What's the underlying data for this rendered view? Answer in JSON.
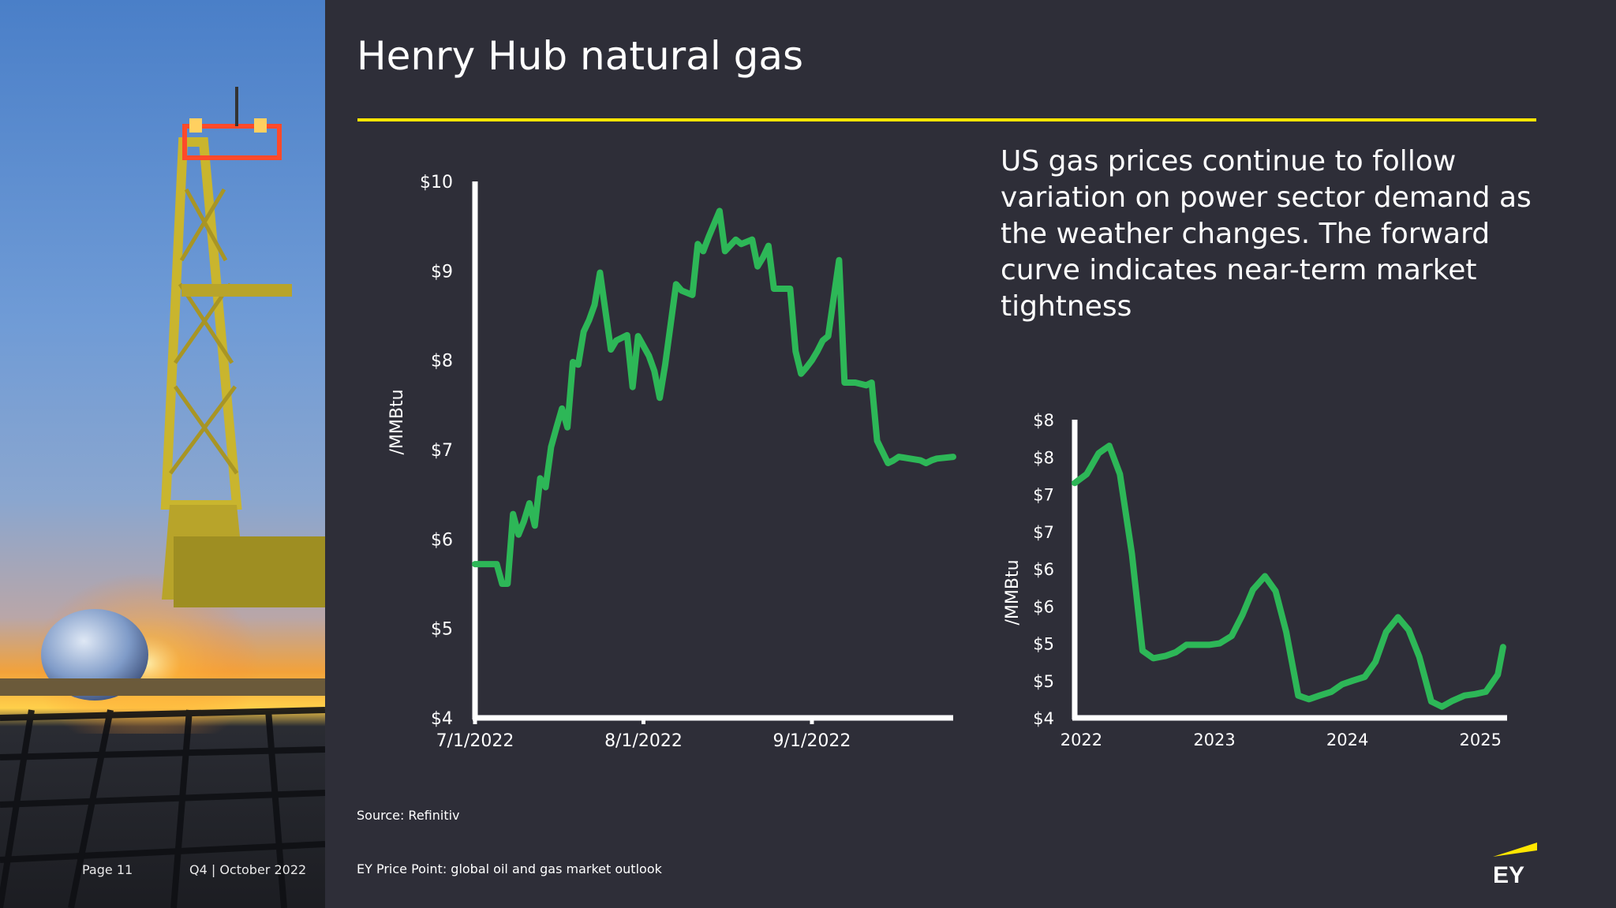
{
  "slide": {
    "title": "Henry Hub natural gas",
    "commentary": "US gas prices continue to follow variation on power sector demand as the weather changes.  The forward curve indicates near-term market tightness",
    "source": "Source: Refinitiv",
    "footer_title": "EY Price Point: global oil and gas market outlook",
    "page": "Page 11",
    "quarter": "Q4 | October 2022",
    "logo_text": "EY"
  },
  "colors": {
    "background": "#2e2e38",
    "accent": "#ffe600",
    "series": "#2db757",
    "axis": "#ffffff"
  },
  "chart_data": [
    {
      "type": "line",
      "title": "",
      "ylabel": "/MMBtu",
      "xlabel": "",
      "x_ticks": [
        "7/1/2022",
        "8/1/2022",
        "9/1/2022"
      ],
      "x_tick_days": [
        0,
        31,
        62
      ],
      "x_range_days": [
        0,
        88
      ],
      "y_ticks": [
        "$4",
        "$5",
        "$6",
        "$7",
        "$8",
        "$9",
        "$10"
      ],
      "ylim": [
        4,
        10
      ],
      "grid": false,
      "series": [
        {
          "name": "",
          "x_days": [
            0,
            4,
            5,
            6,
            7,
            8,
            9,
            10,
            11,
            12,
            13,
            14,
            15,
            16,
            17,
            18,
            19,
            20,
            21,
            22,
            23,
            25,
            26,
            27,
            28,
            29,
            30,
            32,
            33,
            34,
            35,
            37,
            38,
            40,
            41,
            42,
            43,
            45,
            46,
            48,
            49,
            51,
            52,
            53,
            54,
            55,
            56,
            58,
            59,
            60,
            61,
            62,
            63,
            64,
            65,
            67,
            68,
            70,
            72,
            73,
            74,
            76,
            77,
            78,
            82,
            83,
            84,
            85,
            88
          ],
          "values": [
            5.72,
            5.72,
            5.5,
            5.5,
            6.28,
            6.05,
            6.2,
            6.4,
            6.15,
            6.68,
            6.58,
            7.03,
            7.25,
            7.46,
            7.25,
            7.98,
            7.95,
            8.32,
            8.45,
            8.62,
            8.98,
            8.12,
            8.22,
            8.25,
            8.28,
            7.7,
            8.27,
            8.05,
            7.88,
            7.58,
            7.95,
            8.85,
            8.78,
            8.73,
            9.3,
            9.22,
            9.38,
            9.67,
            9.22,
            9.35,
            9.3,
            9.35,
            9.05,
            9.15,
            9.28,
            8.8,
            8.8,
            8.8,
            8.1,
            7.85,
            7.92,
            8.0,
            8.1,
            8.22,
            8.27,
            9.12,
            7.75,
            7.75,
            7.72,
            7.75,
            7.1,
            6.85,
            6.88,
            6.92,
            6.88,
            6.85,
            6.88,
            6.9,
            6.92
          ]
        }
      ]
    },
    {
      "type": "line",
      "title": "",
      "ylabel": "/MMBtu",
      "xlabel": "",
      "x_ticks": [
        "2022",
        "2023",
        "2024",
        "2025"
      ],
      "x_tick_years": [
        2022,
        2023,
        2024,
        2025
      ],
      "x_range_years": [
        2021.95,
        2025.2
      ],
      "y_ticks": [
        "$4",
        "$5",
        "$5",
        "$6",
        "$6",
        "$7",
        "$7",
        "$8",
        "$8"
      ],
      "y_tick_values": [
        4.0,
        4.5,
        5.0,
        5.5,
        6.0,
        6.5,
        7.0,
        7.5,
        8.0
      ],
      "ylim": [
        4,
        8
      ],
      "grid": false,
      "series": [
        {
          "name": "",
          "x_years": [
            2021.95,
            2022.04,
            2022.13,
            2022.21,
            2022.29,
            2022.38,
            2022.46,
            2022.54,
            2022.63,
            2022.71,
            2022.79,
            2022.88,
            2022.96,
            2023.04,
            2023.13,
            2023.21,
            2023.29,
            2023.38,
            2023.46,
            2023.54,
            2023.63,
            2023.71,
            2023.79,
            2023.88,
            2023.96,
            2024.04,
            2024.13,
            2024.21,
            2024.29,
            2024.38,
            2024.46,
            2024.54,
            2024.63,
            2024.71,
            2024.79,
            2024.88,
            2024.96,
            2025.04,
            2025.13,
            2025.17
          ],
          "values": [
            7.15,
            7.27,
            7.55,
            7.65,
            7.27,
            6.2,
            4.9,
            4.8,
            4.83,
            4.88,
            4.98,
            4.98,
            4.98,
            5.0,
            5.1,
            5.38,
            5.72,
            5.9,
            5.7,
            5.15,
            4.3,
            4.25,
            4.3,
            4.35,
            4.45,
            4.5,
            4.55,
            4.75,
            5.15,
            5.35,
            5.18,
            4.82,
            4.22,
            4.15,
            4.23,
            4.3,
            4.32,
            4.35,
            4.58,
            4.95
          ]
        }
      ]
    }
  ]
}
